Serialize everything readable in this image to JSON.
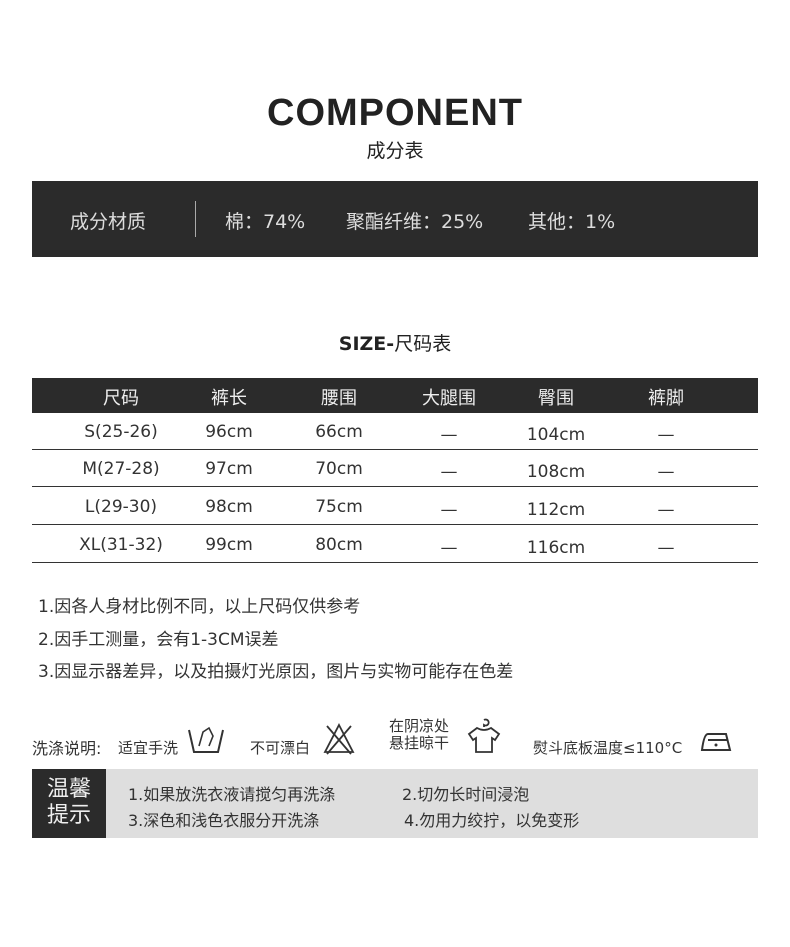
{
  "header": {
    "title": "COMPONENT",
    "subtitle": "成分表"
  },
  "composition": {
    "label": "成分材质",
    "items": [
      "棉：74%",
      "聚酯纤维：25%",
      "其他：1%"
    ]
  },
  "size": {
    "title_bold": "SIZE-",
    "title_rest": "尺码表",
    "columns": [
      "尺码",
      "裤长",
      "腰围",
      "大腿围",
      "臀围",
      "裤脚"
    ],
    "rows": [
      [
        "S(25-26)",
        "96cm",
        "66cm",
        "—",
        "104cm",
        "—"
      ],
      [
        "M(27-28)",
        "97cm",
        "70cm",
        "—",
        "108cm",
        "—"
      ],
      [
        "L(29-30)",
        "98cm",
        "75cm",
        "—",
        "112cm",
        "—"
      ],
      [
        "XL(31-32)",
        "99cm",
        "80cm",
        "—",
        "116cm",
        "—"
      ]
    ]
  },
  "notes": [
    "1.因各人身材比例不同，以上尺码仅供参考",
    "2.因手工测量，会有1-3CM误差",
    "3.因显示器差异，以及拍摄灯光原因，图片与实物可能存在色差"
  ],
  "washing": {
    "label": "洗涤说明:",
    "hand_wash": "适宜手洗",
    "no_bleach": "不可漂白",
    "hang_dry_1": "在阴凉处",
    "hang_dry_2": "悬挂晾干",
    "iron": "熨斗底板温度≤110°C"
  },
  "tips": {
    "label_1": "温馨",
    "label_2": "提示",
    "items": [
      "1.如果放洗衣液请搅匀再洗涤",
      "2.切勿长时间浸泡",
      "3.深色和浅色衣服分开洗涤",
      "4.勿用力绞拧，以免变形"
    ]
  }
}
